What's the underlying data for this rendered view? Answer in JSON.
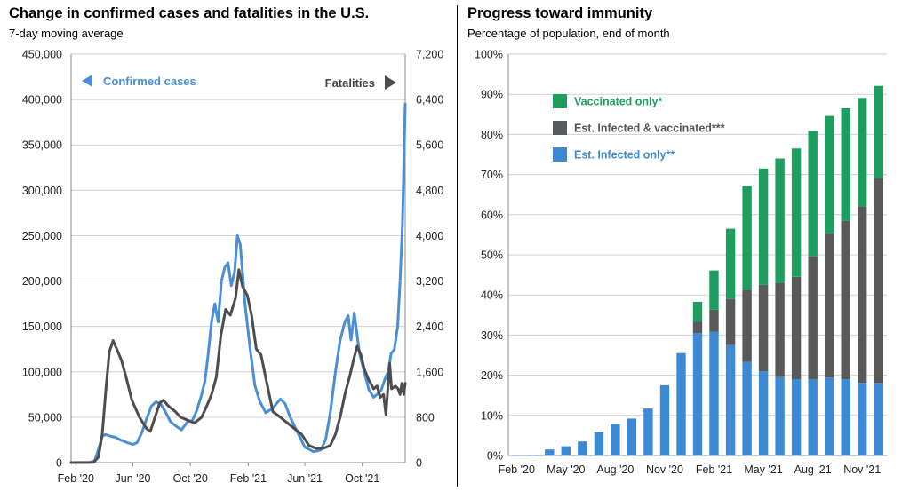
{
  "left_panel": {
    "title": "Change in confirmed cases and fatalities in the U.S.",
    "subtitle": "7-day moving average"
  },
  "right_panel": {
    "title": "Progress toward immunity",
    "subtitle": "Percentage of population, end of month"
  },
  "colors": {
    "cases": "#4a8fd6",
    "fatalities": "#4d4d4f",
    "vaccinated_only": "#1e9e5e",
    "infected_and_vaccinated": "#58595b",
    "infected_only": "#3d8ad4"
  },
  "chart_data": [
    {
      "type": "line",
      "title": "Change in confirmed cases and fatalities in the U.S.",
      "subtitle": "7-day moving average",
      "x_tick_labels": [
        "Feb '20",
        "Jun '20",
        "Oct '20",
        "Feb '21",
        "Jun '21",
        "Oct '21"
      ],
      "x_tick_dates": [
        "2020-02-01",
        "2020-06-01",
        "2020-10-01",
        "2021-02-01",
        "2021-06-01",
        "2021-10-01"
      ],
      "x_range": [
        "2020-01-22",
        "2021-12-31"
      ],
      "y_left_ticks": [
        "0",
        "50,000",
        "100,000",
        "150,000",
        "200,000",
        "250,000",
        "300,000",
        "350,000",
        "400,000",
        "450,000"
      ],
      "y_left_range": [
        0,
        450000
      ],
      "y_right_ticks": [
        "0",
        "800",
        "1,600",
        "2,400",
        "3,200",
        "4,000",
        "4,800",
        "5,600",
        "6,400",
        "7,200"
      ],
      "y_right_range": [
        0,
        7200
      ],
      "grid": true,
      "annotations": [
        {
          "text": "Confirmed cases",
          "arrow": "left",
          "axis": "left"
        },
        {
          "text": "Fatalities",
          "arrow": "right",
          "axis": "right"
        }
      ],
      "series": [
        {
          "name": "Confirmed cases",
          "axis": "left",
          "points": [
            [
              "2020-01-22",
              0
            ],
            [
              "2020-03-01",
              100
            ],
            [
              "2020-03-12",
              2000
            ],
            [
              "2020-03-20",
              15000
            ],
            [
              "2020-03-28",
              29000
            ],
            [
              "2020-04-04",
              31000
            ],
            [
              "2020-04-15",
              29000
            ],
            [
              "2020-04-25",
              28000
            ],
            [
              "2020-05-05",
              25000
            ],
            [
              "2020-05-20",
              22000
            ],
            [
              "2020-06-01",
              20000
            ],
            [
              "2020-06-10",
              22000
            ],
            [
              "2020-06-20",
              33000
            ],
            [
              "2020-06-30",
              48000
            ],
            [
              "2020-07-10",
              62000
            ],
            [
              "2020-07-20",
              67000
            ],
            [
              "2020-07-31",
              64000
            ],
            [
              "2020-08-10",
              55000
            ],
            [
              "2020-08-20",
              45000
            ],
            [
              "2020-09-01",
              40000
            ],
            [
              "2020-09-12",
              36000
            ],
            [
              "2020-09-25",
              45000
            ],
            [
              "2020-10-05",
              46000
            ],
            [
              "2020-10-15",
              58000
            ],
            [
              "2020-10-25",
              75000
            ],
            [
              "2020-11-01",
              90000
            ],
            [
              "2020-11-08",
              120000
            ],
            [
              "2020-11-15",
              155000
            ],
            [
              "2020-11-22",
              175000
            ],
            [
              "2020-11-29",
              155000
            ],
            [
              "2020-12-06",
              200000
            ],
            [
              "2020-12-13",
              215000
            ],
            [
              "2020-12-20",
              220000
            ],
            [
              "2020-12-27",
              195000
            ],
            [
              "2021-01-03",
              210000
            ],
            [
              "2021-01-09",
              250000
            ],
            [
              "2021-01-15",
              240000
            ],
            [
              "2021-01-25",
              175000
            ],
            [
              "2021-02-05",
              125000
            ],
            [
              "2021-02-15",
              85000
            ],
            [
              "2021-02-25",
              68000
            ],
            [
              "2021-03-10",
              55000
            ],
            [
              "2021-03-25",
              60000
            ],
            [
              "2021-04-10",
              70000
            ],
            [
              "2021-04-20",
              65000
            ],
            [
              "2021-05-01",
              50000
            ],
            [
              "2021-05-15",
              35000
            ],
            [
              "2021-06-01",
              17000
            ],
            [
              "2021-06-20",
              12000
            ],
            [
              "2021-07-05",
              14000
            ],
            [
              "2021-07-15",
              25000
            ],
            [
              "2021-07-25",
              55000
            ],
            [
              "2021-08-05",
              100000
            ],
            [
              "2021-08-15",
              135000
            ],
            [
              "2021-08-25",
              155000
            ],
            [
              "2021-09-01",
              162000
            ],
            [
              "2021-09-07",
              135000
            ],
            [
              "2021-09-14",
              165000
            ],
            [
              "2021-09-25",
              120000
            ],
            [
              "2021-10-05",
              100000
            ],
            [
              "2021-10-15",
              80000
            ],
            [
              "2021-10-25",
              72000
            ],
            [
              "2021-11-01",
              75000
            ],
            [
              "2021-11-10",
              80000
            ],
            [
              "2021-11-20",
              95000
            ],
            [
              "2021-11-25",
              100000
            ],
            [
              "2021-12-01",
              120000
            ],
            [
              "2021-12-08",
              125000
            ],
            [
              "2021-12-15",
              150000
            ],
            [
              "2021-12-20",
              200000
            ],
            [
              "2021-12-25",
              260000
            ],
            [
              "2021-12-31",
              395000
            ]
          ]
        },
        {
          "name": "Fatalities",
          "axis": "right",
          "points": [
            [
              "2020-01-22",
              0
            ],
            [
              "2020-03-10",
              5
            ],
            [
              "2020-03-20",
              100
            ],
            [
              "2020-03-28",
              500
            ],
            [
              "2020-04-05",
              1300
            ],
            [
              "2020-04-12",
              1950
            ],
            [
              "2020-04-20",
              2150
            ],
            [
              "2020-04-28",
              2000
            ],
            [
              "2020-05-08",
              1800
            ],
            [
              "2020-05-18",
              1500
            ],
            [
              "2020-05-30",
              1100
            ],
            [
              "2020-06-15",
              800
            ],
            [
              "2020-06-30",
              600
            ],
            [
              "2020-07-08",
              550
            ],
            [
              "2020-07-18",
              800
            ],
            [
              "2020-07-28",
              1050
            ],
            [
              "2020-08-05",
              1100
            ],
            [
              "2020-08-15",
              1000
            ],
            [
              "2020-08-30",
              900
            ],
            [
              "2020-09-10",
              800
            ],
            [
              "2020-09-25",
              750
            ],
            [
              "2020-10-10",
              700
            ],
            [
              "2020-10-25",
              800
            ],
            [
              "2020-11-05",
              1000
            ],
            [
              "2020-11-15",
              1200
            ],
            [
              "2020-11-25",
              1500
            ],
            [
              "2020-12-05",
              2250
            ],
            [
              "2020-12-15",
              2700
            ],
            [
              "2020-12-25",
              2600
            ],
            [
              "2021-01-05",
              2900
            ],
            [
              "2021-01-12",
              3400
            ],
            [
              "2021-01-20",
              3100
            ],
            [
              "2021-01-30",
              2950
            ],
            [
              "2021-02-08",
              2600
            ],
            [
              "2021-02-18",
              2000
            ],
            [
              "2021-02-28",
              1900
            ],
            [
              "2021-03-10",
              1500
            ],
            [
              "2021-03-25",
              900
            ],
            [
              "2021-04-10",
              800
            ],
            [
              "2021-04-25",
              700
            ],
            [
              "2021-05-10",
              600
            ],
            [
              "2021-05-25",
              500
            ],
            [
              "2021-06-10",
              300
            ],
            [
              "2021-06-25",
              250
            ],
            [
              "2021-07-10",
              250
            ],
            [
              "2021-07-25",
              300
            ],
            [
              "2021-08-05",
              500
            ],
            [
              "2021-08-15",
              800
            ],
            [
              "2021-08-25",
              1200
            ],
            [
              "2021-09-05",
              1550
            ],
            [
              "2021-09-12",
              1800
            ],
            [
              "2021-09-20",
              2050
            ],
            [
              "2021-09-28",
              1900
            ],
            [
              "2021-10-05",
              1650
            ],
            [
              "2021-10-15",
              1450
            ],
            [
              "2021-10-25",
              1300
            ],
            [
              "2021-11-01",
              1350
            ],
            [
              "2021-11-08",
              1150
            ],
            [
              "2021-11-15",
              1200
            ],
            [
              "2021-11-20",
              850
            ],
            [
              "2021-11-25",
              1400
            ],
            [
              "2021-11-28",
              1750
            ],
            [
              "2021-12-02",
              1300
            ],
            [
              "2021-12-10",
              1350
            ],
            [
              "2021-12-16",
              1300
            ],
            [
              "2021-12-20",
              1200
            ],
            [
              "2021-12-24",
              1400
            ],
            [
              "2021-12-28",
              1200
            ],
            [
              "2021-12-31",
              1400
            ]
          ]
        }
      ]
    },
    {
      "type": "bar",
      "stacked": true,
      "title": "Progress toward immunity",
      "subtitle": "Percentage of population, end of month",
      "categories": [
        "Feb '20",
        "Mar '20",
        "Apr '20",
        "May '20",
        "Jun '20",
        "Jul '20",
        "Aug '20",
        "Sep '20",
        "Oct '20",
        "Nov '20",
        "Dec '20",
        "Jan '21",
        "Feb '21",
        "Mar '21",
        "Apr '21",
        "May '21",
        "Jun '21",
        "Jul '21",
        "Aug '21",
        "Sep '21",
        "Oct '21",
        "Nov '21",
        "Dec '21"
      ],
      "x_tick_labels": [
        "Feb '20",
        "May '20",
        "Aug '20",
        "Nov '20",
        "Feb '21",
        "May '21",
        "Aug '21",
        "Nov '21"
      ],
      "x_tick_every": 3,
      "y_ticks": [
        "0%",
        "10%",
        "20%",
        "30%",
        "40%",
        "50%",
        "60%",
        "70%",
        "80%",
        "90%",
        "100%"
      ],
      "ylim": [
        0,
        100
      ],
      "grid": true,
      "legend_position": "top-left",
      "series": [
        {
          "name": "Est. Infected only**",
          "color_key": "infected_only",
          "values": [
            0.1,
            0.2,
            1.5,
            2.3,
            3.5,
            5.8,
            7.8,
            9.2,
            11.7,
            17.5,
            25.5,
            30.5,
            30.8,
            27.5,
            23.3,
            21.0,
            19.5,
            19.0,
            19.0,
            19.4,
            19.0,
            18.1,
            18.1
          ]
        },
        {
          "name": "Est. Infected & vaccinated***",
          "color_key": "infected_and_vaccinated",
          "values": [
            0,
            0,
            0,
            0,
            0,
            0,
            0,
            0,
            0,
            0,
            0,
            2.8,
            5.5,
            11.5,
            18.0,
            21.5,
            23.5,
            25.5,
            30.7,
            36.0,
            39.5,
            44.0,
            51.0
          ]
        },
        {
          "name": "Vaccinated only*",
          "color_key": "vaccinated_only",
          "values": [
            0,
            0,
            0,
            0,
            0,
            0,
            0,
            0,
            0,
            0,
            0,
            5.0,
            9.8,
            17.5,
            25.8,
            29.0,
            31.0,
            32.0,
            31.2,
            29.2,
            28.0,
            27.0,
            23.0
          ]
        }
      ]
    }
  ]
}
